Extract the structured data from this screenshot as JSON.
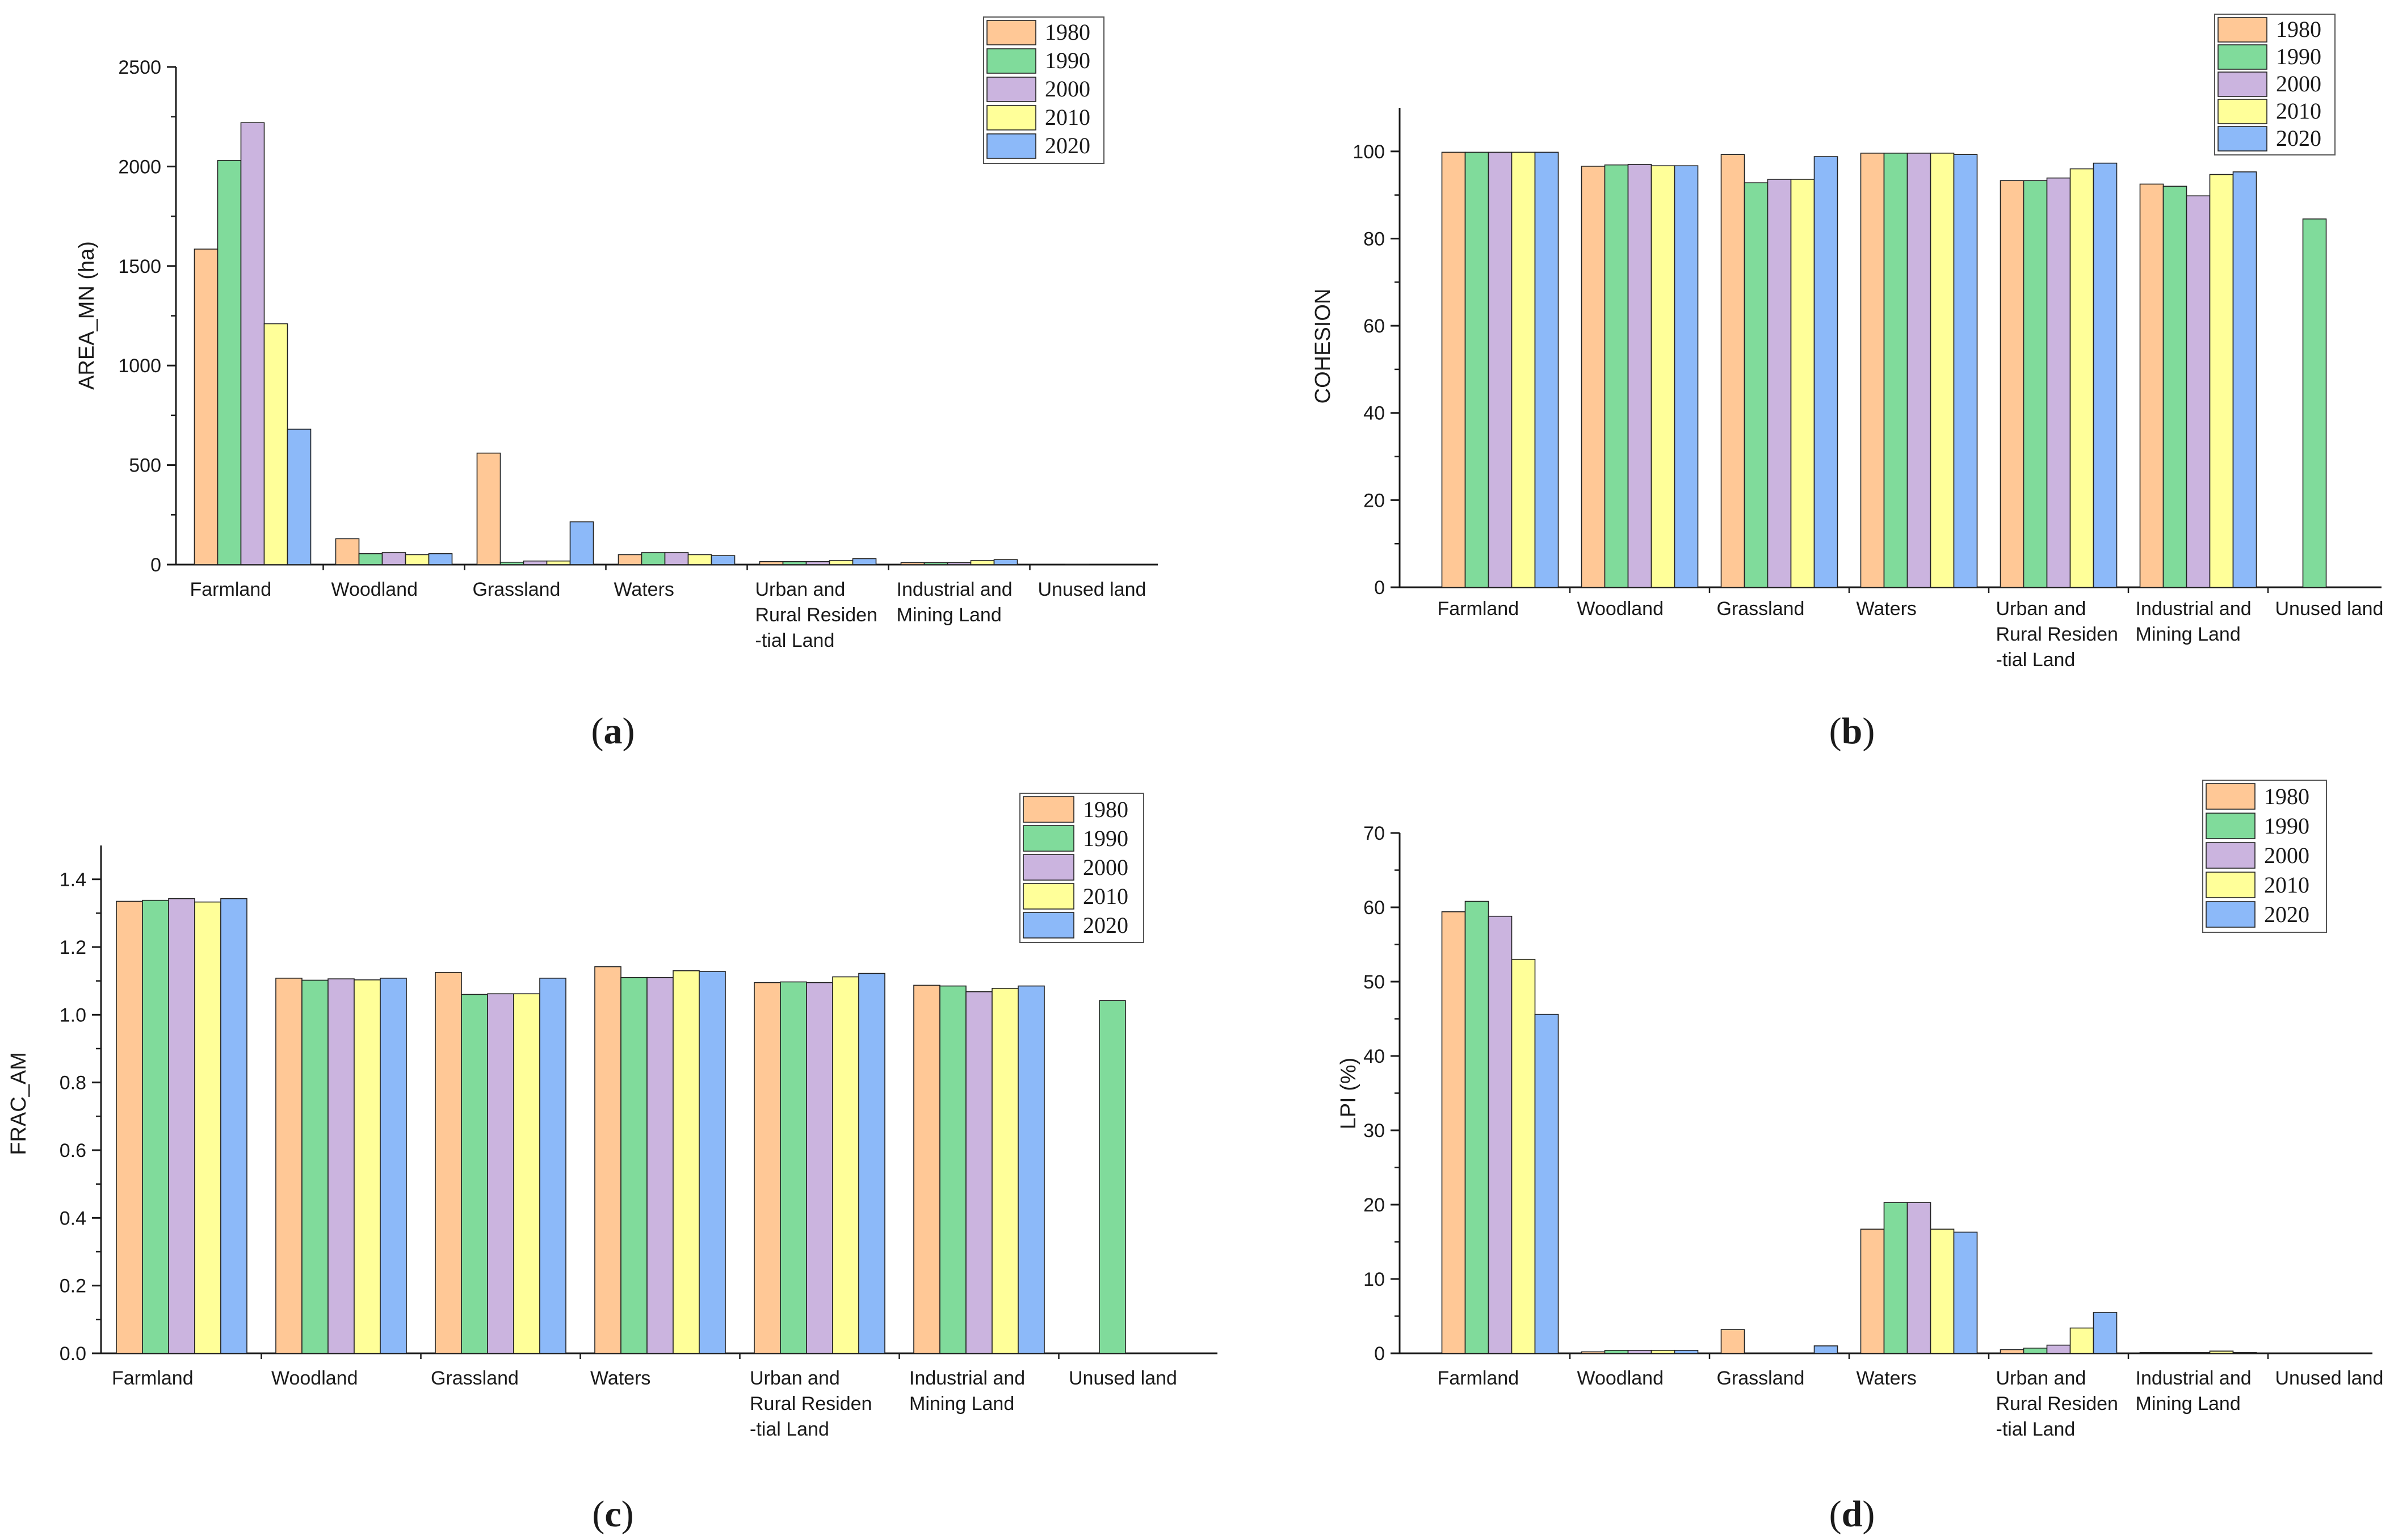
{
  "colors": {
    "1980": "#FFC896",
    "1990": "#80DB9B",
    "2000": "#CBB4DF",
    "2010": "#FFFF99",
    "2020": "#8CB9F9",
    "axis": "#1a1a1a",
    "bar_edge": "#222222"
  },
  "chart_data": [
    {
      "id": "a",
      "type": "bar",
      "panel_label": "(a)",
      "panel_letter": "a",
      "title": "",
      "xlabel": "",
      "ylabel": "AREA_MN (ha)",
      "ylim": [
        0,
        2500
      ],
      "yticks": [
        0,
        500,
        1000,
        1500,
        2000,
        2500
      ],
      "ytick_labels": [
        "0",
        "500",
        "1000",
        "1500",
        "2000",
        "2500"
      ],
      "categories": [
        "Farmland",
        "Woodland",
        "Grassland",
        "Waters",
        "Urban and Rural Residential Land",
        "Industrial and Mining Land",
        "Unused land"
      ],
      "category_labels": [
        [
          "Farmland"
        ],
        [
          "Woodland"
        ],
        [
          "Grassland"
        ],
        [
          "Waters"
        ],
        [
          "Urban and",
          "Rural Residen",
          "-tial Land"
        ],
        [
          "Industrial and",
          "Mining Land"
        ],
        [
          "Unused land"
        ]
      ],
      "legend_position": "top-right",
      "series": [
        {
          "name": "1980",
          "values": [
            1585,
            130,
            560,
            50,
            15,
            10,
            0
          ]
        },
        {
          "name": "1990",
          "values": [
            2030,
            55,
            12,
            60,
            15,
            10,
            2
          ]
        },
        {
          "name": "2000",
          "values": [
            2220,
            60,
            18,
            60,
            15,
            10,
            0
          ]
        },
        {
          "name": "2010",
          "values": [
            1210,
            50,
            18,
            50,
            20,
            20,
            0
          ]
        },
        {
          "name": "2020",
          "values": [
            680,
            55,
            215,
            45,
            30,
            25,
            0
          ]
        }
      ]
    },
    {
      "id": "b",
      "type": "bar",
      "panel_label": "(b)",
      "panel_letter": "b",
      "title": "",
      "xlabel": "",
      "ylabel": "COHESION",
      "ylim": [
        0,
        110
      ],
      "yticks": [
        0,
        20,
        40,
        60,
        80,
        100
      ],
      "ytick_labels": [
        "0",
        "20",
        "40",
        "60",
        "80",
        "100"
      ],
      "categories": [
        "Farmland",
        "Woodland",
        "Grassland",
        "Waters",
        "Urban and Rural Residential Land",
        "Industrial and Mining Land",
        "Unused land"
      ],
      "category_labels": [
        [
          "Farmland"
        ],
        [
          "Woodland"
        ],
        [
          "Grassland"
        ],
        [
          "Waters"
        ],
        [
          "Urban and",
          "Rural Residen",
          "-tial Land"
        ],
        [
          "Industrial and",
          "Mining Land"
        ],
        [
          "Unused land"
        ]
      ],
      "legend_position": "top-right",
      "series": [
        {
          "name": "1980",
          "values": [
            99.8,
            96.6,
            99.3,
            99.6,
            93.3,
            92.5,
            0
          ]
        },
        {
          "name": "1990",
          "values": [
            99.8,
            96.9,
            92.8,
            99.6,
            93.3,
            92.0,
            84.5
          ]
        },
        {
          "name": "2000",
          "values": [
            99.8,
            97.0,
            93.6,
            99.6,
            93.9,
            89.8,
            0
          ]
        },
        {
          "name": "2010",
          "values": [
            99.8,
            96.7,
            93.6,
            99.6,
            96.0,
            94.7,
            0
          ]
        },
        {
          "name": "2020",
          "values": [
            99.8,
            96.7,
            98.8,
            99.3,
            97.3,
            95.3,
            0
          ]
        }
      ]
    },
    {
      "id": "c",
      "type": "bar",
      "panel_label": "(c)",
      "panel_letter": "c",
      "title": "",
      "xlabel": "",
      "ylabel": "FRAC_AM",
      "ylim": [
        0,
        1.5
      ],
      "yticks": [
        0,
        0.2,
        0.4,
        0.6,
        0.8,
        1.0,
        1.2,
        1.4
      ],
      "ytick_labels": [
        "0.0",
        "0.2",
        "0.4",
        "0.6",
        "0.8",
        "1.0",
        "1.2",
        "1.4"
      ],
      "categories": [
        "Farmland",
        "Woodland",
        "Grassland",
        "Waters",
        "Urban and Rural Residential Land",
        "Industrial and Mining Land",
        "Unused land"
      ],
      "category_labels": [
        [
          "Farmland"
        ],
        [
          "Woodland"
        ],
        [
          "Grassland"
        ],
        [
          "Waters"
        ],
        [
          "Urban and",
          " Rural Residen",
          "-tial Land"
        ],
        [
          "Industrial and",
          "Mining Land"
        ],
        [
          "Unused land"
        ]
      ],
      "legend_position": "top-right",
      "series": [
        {
          "name": "1980",
          "values": [
            1.335,
            1.108,
            1.125,
            1.142,
            1.095,
            1.087,
            0
          ]
        },
        {
          "name": "1990",
          "values": [
            1.338,
            1.102,
            1.06,
            1.11,
            1.097,
            1.085,
            1.042
          ]
        },
        {
          "name": "2000",
          "values": [
            1.343,
            1.106,
            1.062,
            1.11,
            1.095,
            1.068,
            0
          ]
        },
        {
          "name": "2010",
          "values": [
            1.333,
            1.103,
            1.062,
            1.13,
            1.112,
            1.078,
            0
          ]
        },
        {
          "name": "2020",
          "values": [
            1.343,
            1.108,
            1.108,
            1.128,
            1.122,
            1.085,
            0
          ]
        }
      ]
    },
    {
      "id": "d",
      "type": "bar",
      "panel_label": "(d)",
      "panel_letter": "d",
      "title": "",
      "xlabel": "",
      "ylabel": "LPI (%)",
      "ylim": [
        0,
        70
      ],
      "yticks": [
        0,
        10,
        20,
        30,
        40,
        50,
        60,
        70
      ],
      "ytick_labels": [
        "0",
        "10",
        "20",
        "30",
        "40",
        "50",
        "60",
        "70"
      ],
      "categories": [
        "Farmland",
        "Woodland",
        "Grassland",
        "Waters",
        "Urban and Rural Residential Land",
        "Industrial and Mining Land",
        "Unused land"
      ],
      "category_labels": [
        [
          "Farmland"
        ],
        [
          "Woodland"
        ],
        [
          "Grassland"
        ],
        [
          "Waters"
        ],
        [
          "Urban and",
          "Rural Residen",
          "-tial Land"
        ],
        [
          "Industrial and",
          "Mining Land"
        ],
        [
          "Unused land"
        ]
      ],
      "legend_position": "top-right",
      "series": [
        {
          "name": "1980",
          "values": [
            59.4,
            0.2,
            3.2,
            16.7,
            0.5,
            0.1,
            0
          ]
        },
        {
          "name": "1990",
          "values": [
            60.8,
            0.4,
            0,
            20.3,
            0.7,
            0.1,
            0
          ]
        },
        {
          "name": "2000",
          "values": [
            58.8,
            0.4,
            0,
            20.3,
            1.1,
            0.1,
            0
          ]
        },
        {
          "name": "2010",
          "values": [
            53.0,
            0.4,
            0,
            16.7,
            3.4,
            0.3,
            0
          ]
        },
        {
          "name": "2020",
          "values": [
            45.6,
            0.4,
            1.0,
            16.3,
            5.5,
            0.1,
            0
          ]
        }
      ]
    }
  ]
}
